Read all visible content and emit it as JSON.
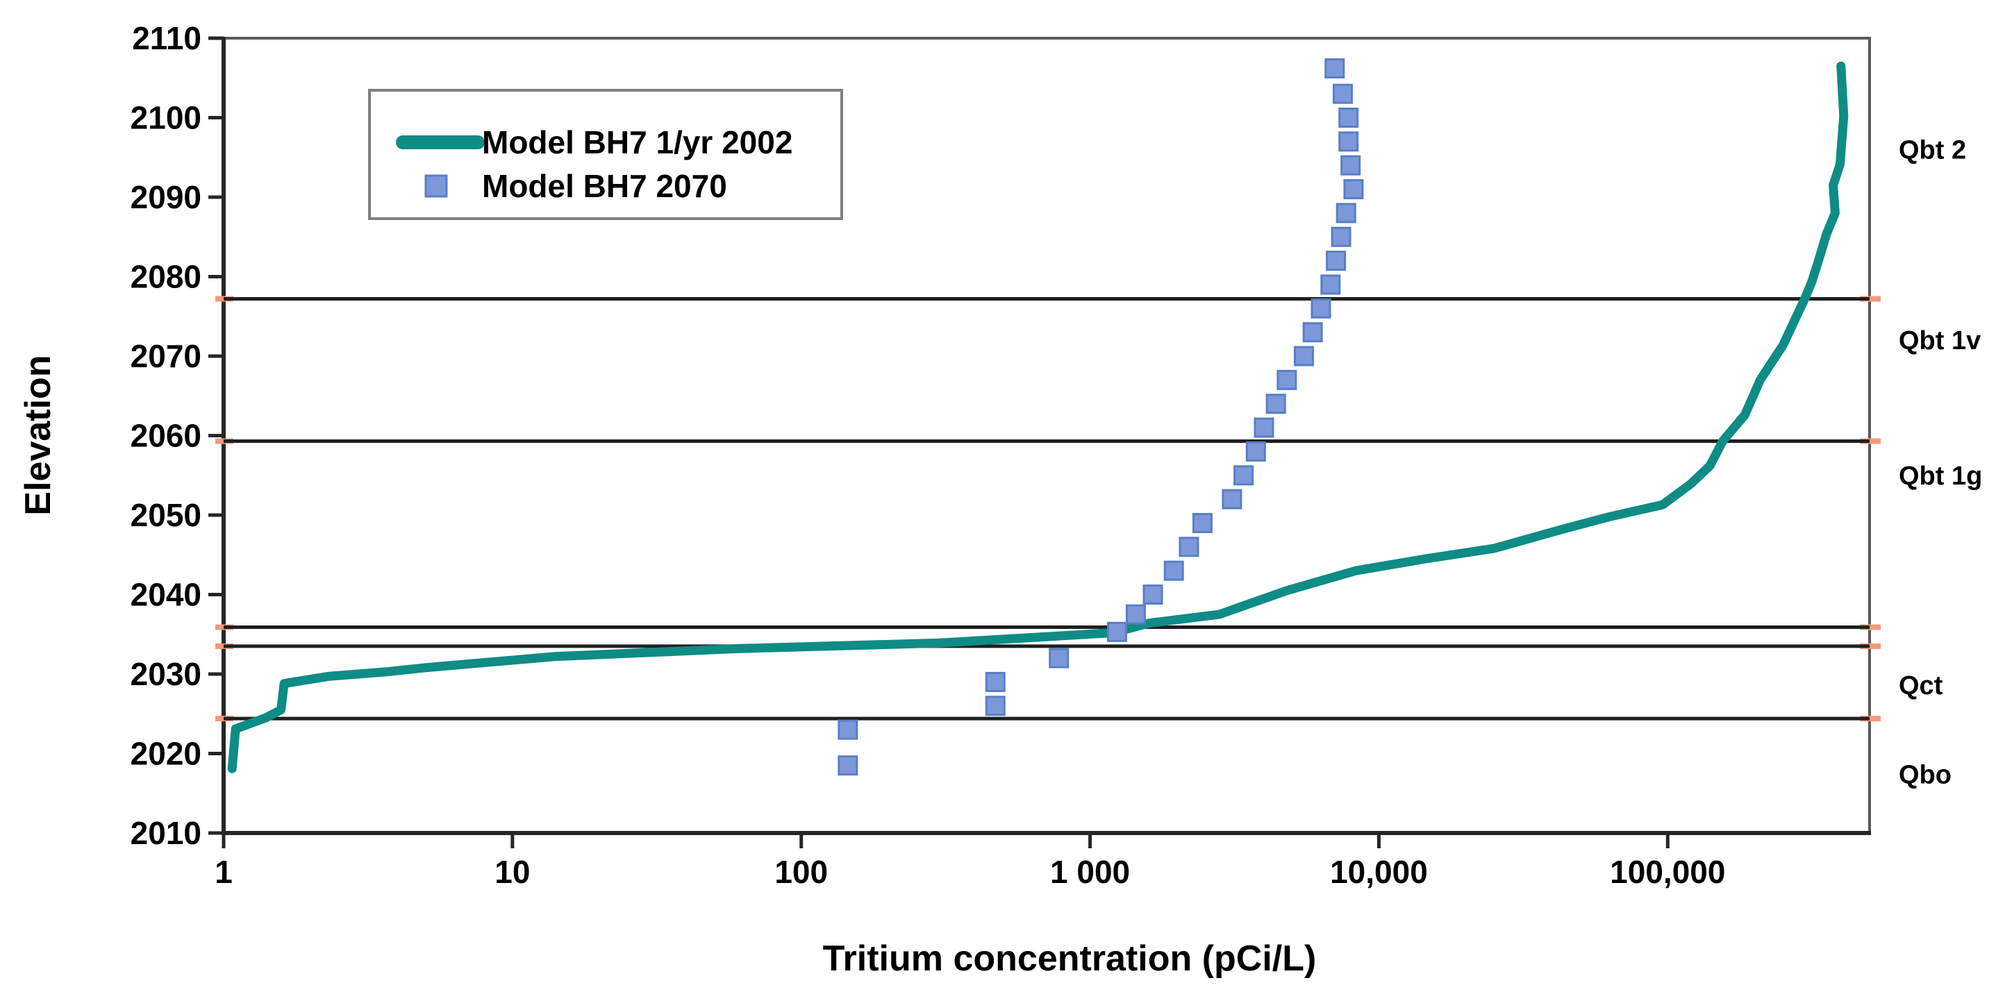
{
  "figure": {
    "background": "#ffffff",
    "frame_color": "#595959",
    "axis_color": "#262626"
  },
  "chart_data": {
    "type": "line",
    "title": "",
    "xlabel": "Tritium concentration (pCi/L)",
    "ylabel": "Elevation",
    "x_scale": "log",
    "xlim": [
      1,
      500000
    ],
    "ylim": [
      2010,
      2110
    ],
    "grid": false,
    "legend_position": "top-left",
    "x_ticks": [
      {
        "value": 1,
        "label": "1"
      },
      {
        "value": 10,
        "label": "10"
      },
      {
        "value": 100,
        "label": "100"
      },
      {
        "value": 1000,
        "label": "1 000"
      },
      {
        "value": 10000,
        "label": "10,000"
      },
      {
        "value": 100000,
        "label": "100,000"
      }
    ],
    "y_tick_start": 2010,
    "y_tick_end": 2110,
    "y_tick_step": 10,
    "series": [
      {
        "name": "Model BH7 1/yr 2002",
        "type": "line",
        "color": "#0e8c85",
        "line_width": 13,
        "points": [
          [
            1.07,
            2018.1
          ],
          [
            1.1,
            2023.1
          ],
          [
            1.4,
            2024.5
          ],
          [
            1.58,
            2025.5
          ],
          [
            1.62,
            2028.8
          ],
          [
            2.3,
            2029.7
          ],
          [
            3.7,
            2030.3
          ],
          [
            5,
            2030.8
          ],
          [
            14,
            2032.2
          ],
          [
            60,
            2033.2
          ],
          [
            300,
            2033.9
          ],
          [
            1200,
            2035.2
          ],
          [
            1600,
            2036.4
          ],
          [
            2800,
            2037.5
          ],
          [
            4800,
            2040.5
          ],
          [
            8300,
            2043.0
          ],
          [
            14500,
            2044.5
          ],
          [
            25000,
            2045.8
          ],
          [
            44000,
            2048.3
          ],
          [
            63000,
            2049.8
          ],
          [
            96000,
            2051.3
          ],
          [
            120000,
            2053.9
          ],
          [
            140000,
            2056.2
          ],
          [
            155000,
            2059.3
          ],
          [
            185000,
            2062.6
          ],
          [
            209000,
            2067.0
          ],
          [
            251000,
            2071.4
          ],
          [
            298000,
            2077.2
          ],
          [
            315000,
            2079.3
          ],
          [
            330000,
            2081.6
          ],
          [
            355000,
            2085.4
          ],
          [
            380000,
            2088.0
          ],
          [
            374000,
            2091.5
          ],
          [
            395000,
            2094.1
          ],
          [
            407000,
            2100.2
          ],
          [
            398000,
            2106.5
          ]
        ]
      },
      {
        "name": "Model BH7 2070",
        "type": "scatter",
        "marker": "square",
        "marker_size": 26,
        "fill": "#7d98d8",
        "stroke": "#5a7ec7",
        "points": [
          [
            7030,
            2106.2
          ],
          [
            7500,
            2103
          ],
          [
            7850,
            2100
          ],
          [
            7850,
            2097
          ],
          [
            7980,
            2094
          ],
          [
            8170,
            2091
          ],
          [
            7700,
            2088
          ],
          [
            7400,
            2085
          ],
          [
            7100,
            2082
          ],
          [
            6800,
            2079
          ],
          [
            6300,
            2076
          ],
          [
            5900,
            2073
          ],
          [
            5500,
            2070
          ],
          [
            4800,
            2067
          ],
          [
            4400,
            2064
          ],
          [
            4000,
            2061
          ],
          [
            3750,
            2058
          ],
          [
            3400,
            2055
          ],
          [
            3100,
            2052
          ],
          [
            2450,
            2049
          ],
          [
            2200,
            2046
          ],
          [
            1950,
            2043
          ],
          [
            1650,
            2040
          ],
          [
            1440,
            2037.5
          ],
          [
            1240,
            2035.3
          ],
          [
            780,
            2032
          ],
          [
            470,
            2029
          ],
          [
            470,
            2026
          ],
          [
            145,
            2023
          ],
          [
            145,
            2018.5
          ]
        ]
      }
    ],
    "layer_boundaries": {
      "color": "#1f1f1f",
      "line_width": 5,
      "end_tick_color": "#f5997d",
      "elevations": [
        2077.2,
        2059.3,
        2035.9,
        2033.5,
        2024.4
      ]
    },
    "strata_labels": [
      {
        "label": "Qbt 2",
        "elevation": 2096.0
      },
      {
        "label": "Qbt 1v",
        "elevation": 2072.0
      },
      {
        "label": "Qbt 1g",
        "elevation": 2055.0
      },
      {
        "label": "Qct",
        "elevation": 2028.6
      },
      {
        "label": "Qbo",
        "elevation": 2017.4
      }
    ]
  }
}
